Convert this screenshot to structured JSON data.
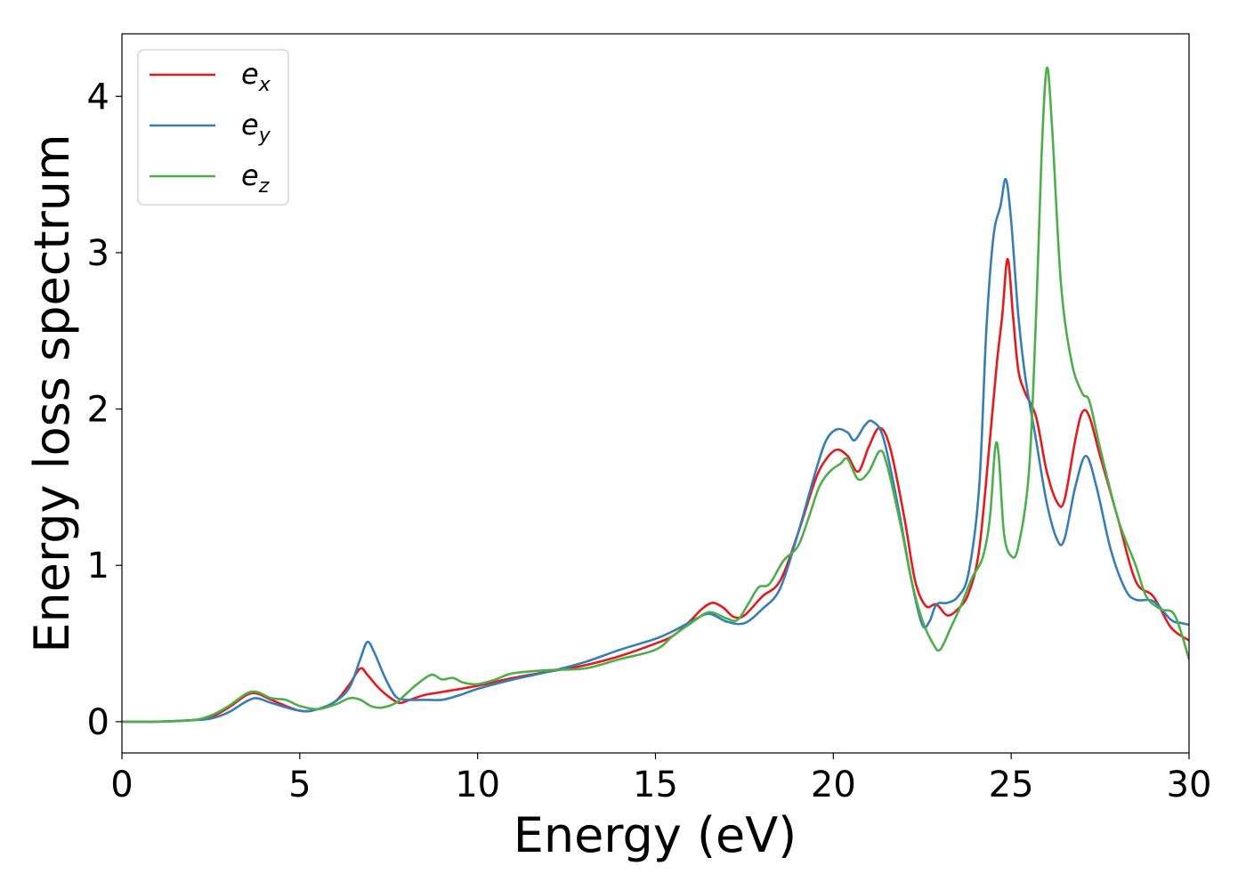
{
  "chart_data": {
    "type": "line",
    "xlabel": "Energy (eV)",
    "ylabel": "Energy loss spectrum",
    "xlim": [
      0,
      30
    ],
    "ylim": [
      -0.2,
      4.4
    ],
    "xticks": [
      0,
      5,
      10,
      15,
      20,
      25,
      30
    ],
    "yticks": [
      0,
      1,
      2,
      3,
      4
    ],
    "legend_position": "top-left",
    "grid": false,
    "series": [
      {
        "name": "e_x",
        "label_base": "e",
        "label_sub": "x",
        "color": "#e41a1c",
        "points": [
          [
            0,
            0
          ],
          [
            1,
            0
          ],
          [
            2,
            0.01
          ],
          [
            2.5,
            0.03
          ],
          [
            3,
            0.09
          ],
          [
            3.5,
            0.17
          ],
          [
            3.8,
            0.18
          ],
          [
            4.2,
            0.14
          ],
          [
            5,
            0.07
          ],
          [
            5.5,
            0.08
          ],
          [
            6,
            0.13
          ],
          [
            6.4,
            0.24
          ],
          [
            6.7,
            0.34
          ],
          [
            6.9,
            0.3
          ],
          [
            7.2,
            0.22
          ],
          [
            7.5,
            0.16
          ],
          [
            7.8,
            0.12
          ],
          [
            8.1,
            0.14
          ],
          [
            8.5,
            0.17
          ],
          [
            9,
            0.19
          ],
          [
            10,
            0.23
          ],
          [
            11,
            0.28
          ],
          [
            12,
            0.32
          ],
          [
            13,
            0.36
          ],
          [
            14,
            0.42
          ],
          [
            15,
            0.5
          ],
          [
            15.5,
            0.55
          ],
          [
            16,
            0.65
          ],
          [
            16.3,
            0.72
          ],
          [
            16.6,
            0.76
          ],
          [
            16.9,
            0.73
          ],
          [
            17.2,
            0.67
          ],
          [
            17.5,
            0.68
          ],
          [
            18,
            0.8
          ],
          [
            18.5,
            0.9
          ],
          [
            19,
            1.2
          ],
          [
            19.5,
            1.55
          ],
          [
            19.8,
            1.68
          ],
          [
            20.1,
            1.74
          ],
          [
            20.4,
            1.7
          ],
          [
            20.7,
            1.6
          ],
          [
            21,
            1.76
          ],
          [
            21.3,
            1.88
          ],
          [
            21.6,
            1.75
          ],
          [
            22,
            1.3
          ],
          [
            22.3,
            0.9
          ],
          [
            22.6,
            0.74
          ],
          [
            22.9,
            0.75
          ],
          [
            23.2,
            0.68
          ],
          [
            23.5,
            0.72
          ],
          [
            23.8,
            0.82
          ],
          [
            24.1,
            1.1
          ],
          [
            24.4,
            1.8
          ],
          [
            24.6,
            2.3
          ],
          [
            24.75,
            2.6
          ],
          [
            24.9,
            2.96
          ],
          [
            25.05,
            2.6
          ],
          [
            25.2,
            2.25
          ],
          [
            25.4,
            2.1
          ],
          [
            25.7,
            1.95
          ],
          [
            26,
            1.6
          ],
          [
            26.3,
            1.4
          ],
          [
            26.5,
            1.42
          ],
          [
            26.8,
            1.8
          ],
          [
            27,
            1.98
          ],
          [
            27.2,
            1.95
          ],
          [
            27.5,
            1.7
          ],
          [
            28,
            1.3
          ],
          [
            28.5,
            0.9
          ],
          [
            29,
            0.8
          ],
          [
            29.5,
            0.6
          ],
          [
            30,
            0.52
          ]
        ]
      },
      {
        "name": "e_y",
        "label_base": "e",
        "label_sub": "y",
        "color": "#377eb8",
        "points": [
          [
            0,
            0
          ],
          [
            1,
            0
          ],
          [
            2,
            0.01
          ],
          [
            2.5,
            0.02
          ],
          [
            3,
            0.06
          ],
          [
            3.5,
            0.13
          ],
          [
            3.8,
            0.15
          ],
          [
            4.2,
            0.12
          ],
          [
            5,
            0.07
          ],
          [
            5.5,
            0.08
          ],
          [
            6,
            0.13
          ],
          [
            6.4,
            0.22
          ],
          [
            6.7,
            0.4
          ],
          [
            6.9,
            0.51
          ],
          [
            7.1,
            0.44
          ],
          [
            7.4,
            0.28
          ],
          [
            7.7,
            0.16
          ],
          [
            8,
            0.14
          ],
          [
            8.5,
            0.14
          ],
          [
            9,
            0.14
          ],
          [
            9.5,
            0.17
          ],
          [
            10,
            0.21
          ],
          [
            11,
            0.27
          ],
          [
            12,
            0.32
          ],
          [
            13,
            0.38
          ],
          [
            14,
            0.46
          ],
          [
            15,
            0.53
          ],
          [
            15.5,
            0.58
          ],
          [
            16,
            0.64
          ],
          [
            16.5,
            0.69
          ],
          [
            17,
            0.64
          ],
          [
            17.5,
            0.63
          ],
          [
            18,
            0.72
          ],
          [
            18.5,
            0.85
          ],
          [
            19,
            1.2
          ],
          [
            19.5,
            1.6
          ],
          [
            19.8,
            1.8
          ],
          [
            20.1,
            1.87
          ],
          [
            20.4,
            1.85
          ],
          [
            20.6,
            1.8
          ],
          [
            20.9,
            1.9
          ],
          [
            21.1,
            1.92
          ],
          [
            21.4,
            1.82
          ],
          [
            21.8,
            1.4
          ],
          [
            22.2,
            0.9
          ],
          [
            22.5,
            0.62
          ],
          [
            22.7,
            0.64
          ],
          [
            22.9,
            0.75
          ],
          [
            23.2,
            0.76
          ],
          [
            23.5,
            0.8
          ],
          [
            23.8,
            0.95
          ],
          [
            24.1,
            1.5
          ],
          [
            24.3,
            2.5
          ],
          [
            24.5,
            3.1
          ],
          [
            24.7,
            3.3
          ],
          [
            24.85,
            3.47
          ],
          [
            25,
            3.2
          ],
          [
            25.2,
            2.6
          ],
          [
            25.4,
            2.2
          ],
          [
            25.7,
            1.8
          ],
          [
            26,
            1.4
          ],
          [
            26.3,
            1.16
          ],
          [
            26.5,
            1.17
          ],
          [
            26.8,
            1.5
          ],
          [
            27.1,
            1.7
          ],
          [
            27.4,
            1.5
          ],
          [
            27.8,
            1.1
          ],
          [
            28.2,
            0.85
          ],
          [
            28.5,
            0.78
          ],
          [
            29,
            0.77
          ],
          [
            29.5,
            0.65
          ],
          [
            29.8,
            0.63
          ],
          [
            30,
            0.62
          ]
        ]
      },
      {
        "name": "e_z",
        "label_base": "e",
        "label_sub": "z",
        "color": "#4daf4a",
        "points": [
          [
            0,
            0
          ],
          [
            1,
            0
          ],
          [
            2,
            0.01
          ],
          [
            2.5,
            0.04
          ],
          [
            3,
            0.1
          ],
          [
            3.5,
            0.18
          ],
          [
            3.8,
            0.19
          ],
          [
            4.2,
            0.15
          ],
          [
            4.6,
            0.14
          ],
          [
            5,
            0.1
          ],
          [
            5.5,
            0.08
          ],
          [
            6,
            0.11
          ],
          [
            6.4,
            0.15
          ],
          [
            6.7,
            0.14
          ],
          [
            7,
            0.1
          ],
          [
            7.3,
            0.09
          ],
          [
            7.7,
            0.12
          ],
          [
            8,
            0.18
          ],
          [
            8.3,
            0.24
          ],
          [
            8.7,
            0.3
          ],
          [
            9,
            0.27
          ],
          [
            9.3,
            0.28
          ],
          [
            9.6,
            0.25
          ],
          [
            10,
            0.24
          ],
          [
            10.5,
            0.27
          ],
          [
            11,
            0.31
          ],
          [
            12,
            0.33
          ],
          [
            13,
            0.34
          ],
          [
            14,
            0.4
          ],
          [
            15,
            0.46
          ],
          [
            15.5,
            0.55
          ],
          [
            16,
            0.63
          ],
          [
            16.5,
            0.7
          ],
          [
            17,
            0.66
          ],
          [
            17.3,
            0.65
          ],
          [
            17.6,
            0.75
          ],
          [
            17.9,
            0.86
          ],
          [
            18.2,
            0.88
          ],
          [
            18.6,
            1.03
          ],
          [
            19,
            1.12
          ],
          [
            19.3,
            1.3
          ],
          [
            19.6,
            1.5
          ],
          [
            19.9,
            1.6
          ],
          [
            20.2,
            1.65
          ],
          [
            20.4,
            1.68
          ],
          [
            20.7,
            1.55
          ],
          [
            21,
            1.6
          ],
          [
            21.3,
            1.73
          ],
          [
            21.5,
            1.65
          ],
          [
            21.9,
            1.25
          ],
          [
            22.2,
            0.9
          ],
          [
            22.5,
            0.65
          ],
          [
            22.8,
            0.5
          ],
          [
            23,
            0.46
          ],
          [
            23.3,
            0.6
          ],
          [
            23.6,
            0.75
          ],
          [
            23.9,
            0.92
          ],
          [
            24.2,
            1.05
          ],
          [
            24.4,
            1.3
          ],
          [
            24.55,
            1.75
          ],
          [
            24.65,
            1.7
          ],
          [
            24.8,
            1.2
          ],
          [
            25,
            1.06
          ],
          [
            25.2,
            1.12
          ],
          [
            25.5,
            1.6
          ],
          [
            25.7,
            2.6
          ],
          [
            25.85,
            3.6
          ],
          [
            26,
            4.18
          ],
          [
            26.15,
            3.8
          ],
          [
            26.4,
            2.8
          ],
          [
            26.7,
            2.3
          ],
          [
            27,
            2.1
          ],
          [
            27.2,
            2.05
          ],
          [
            27.5,
            1.75
          ],
          [
            28,
            1.3
          ],
          [
            28.5,
            1.0
          ],
          [
            28.8,
            0.8
          ],
          [
            29.2,
            0.72
          ],
          [
            29.6,
            0.68
          ],
          [
            30,
            0.4
          ]
        ]
      }
    ]
  }
}
